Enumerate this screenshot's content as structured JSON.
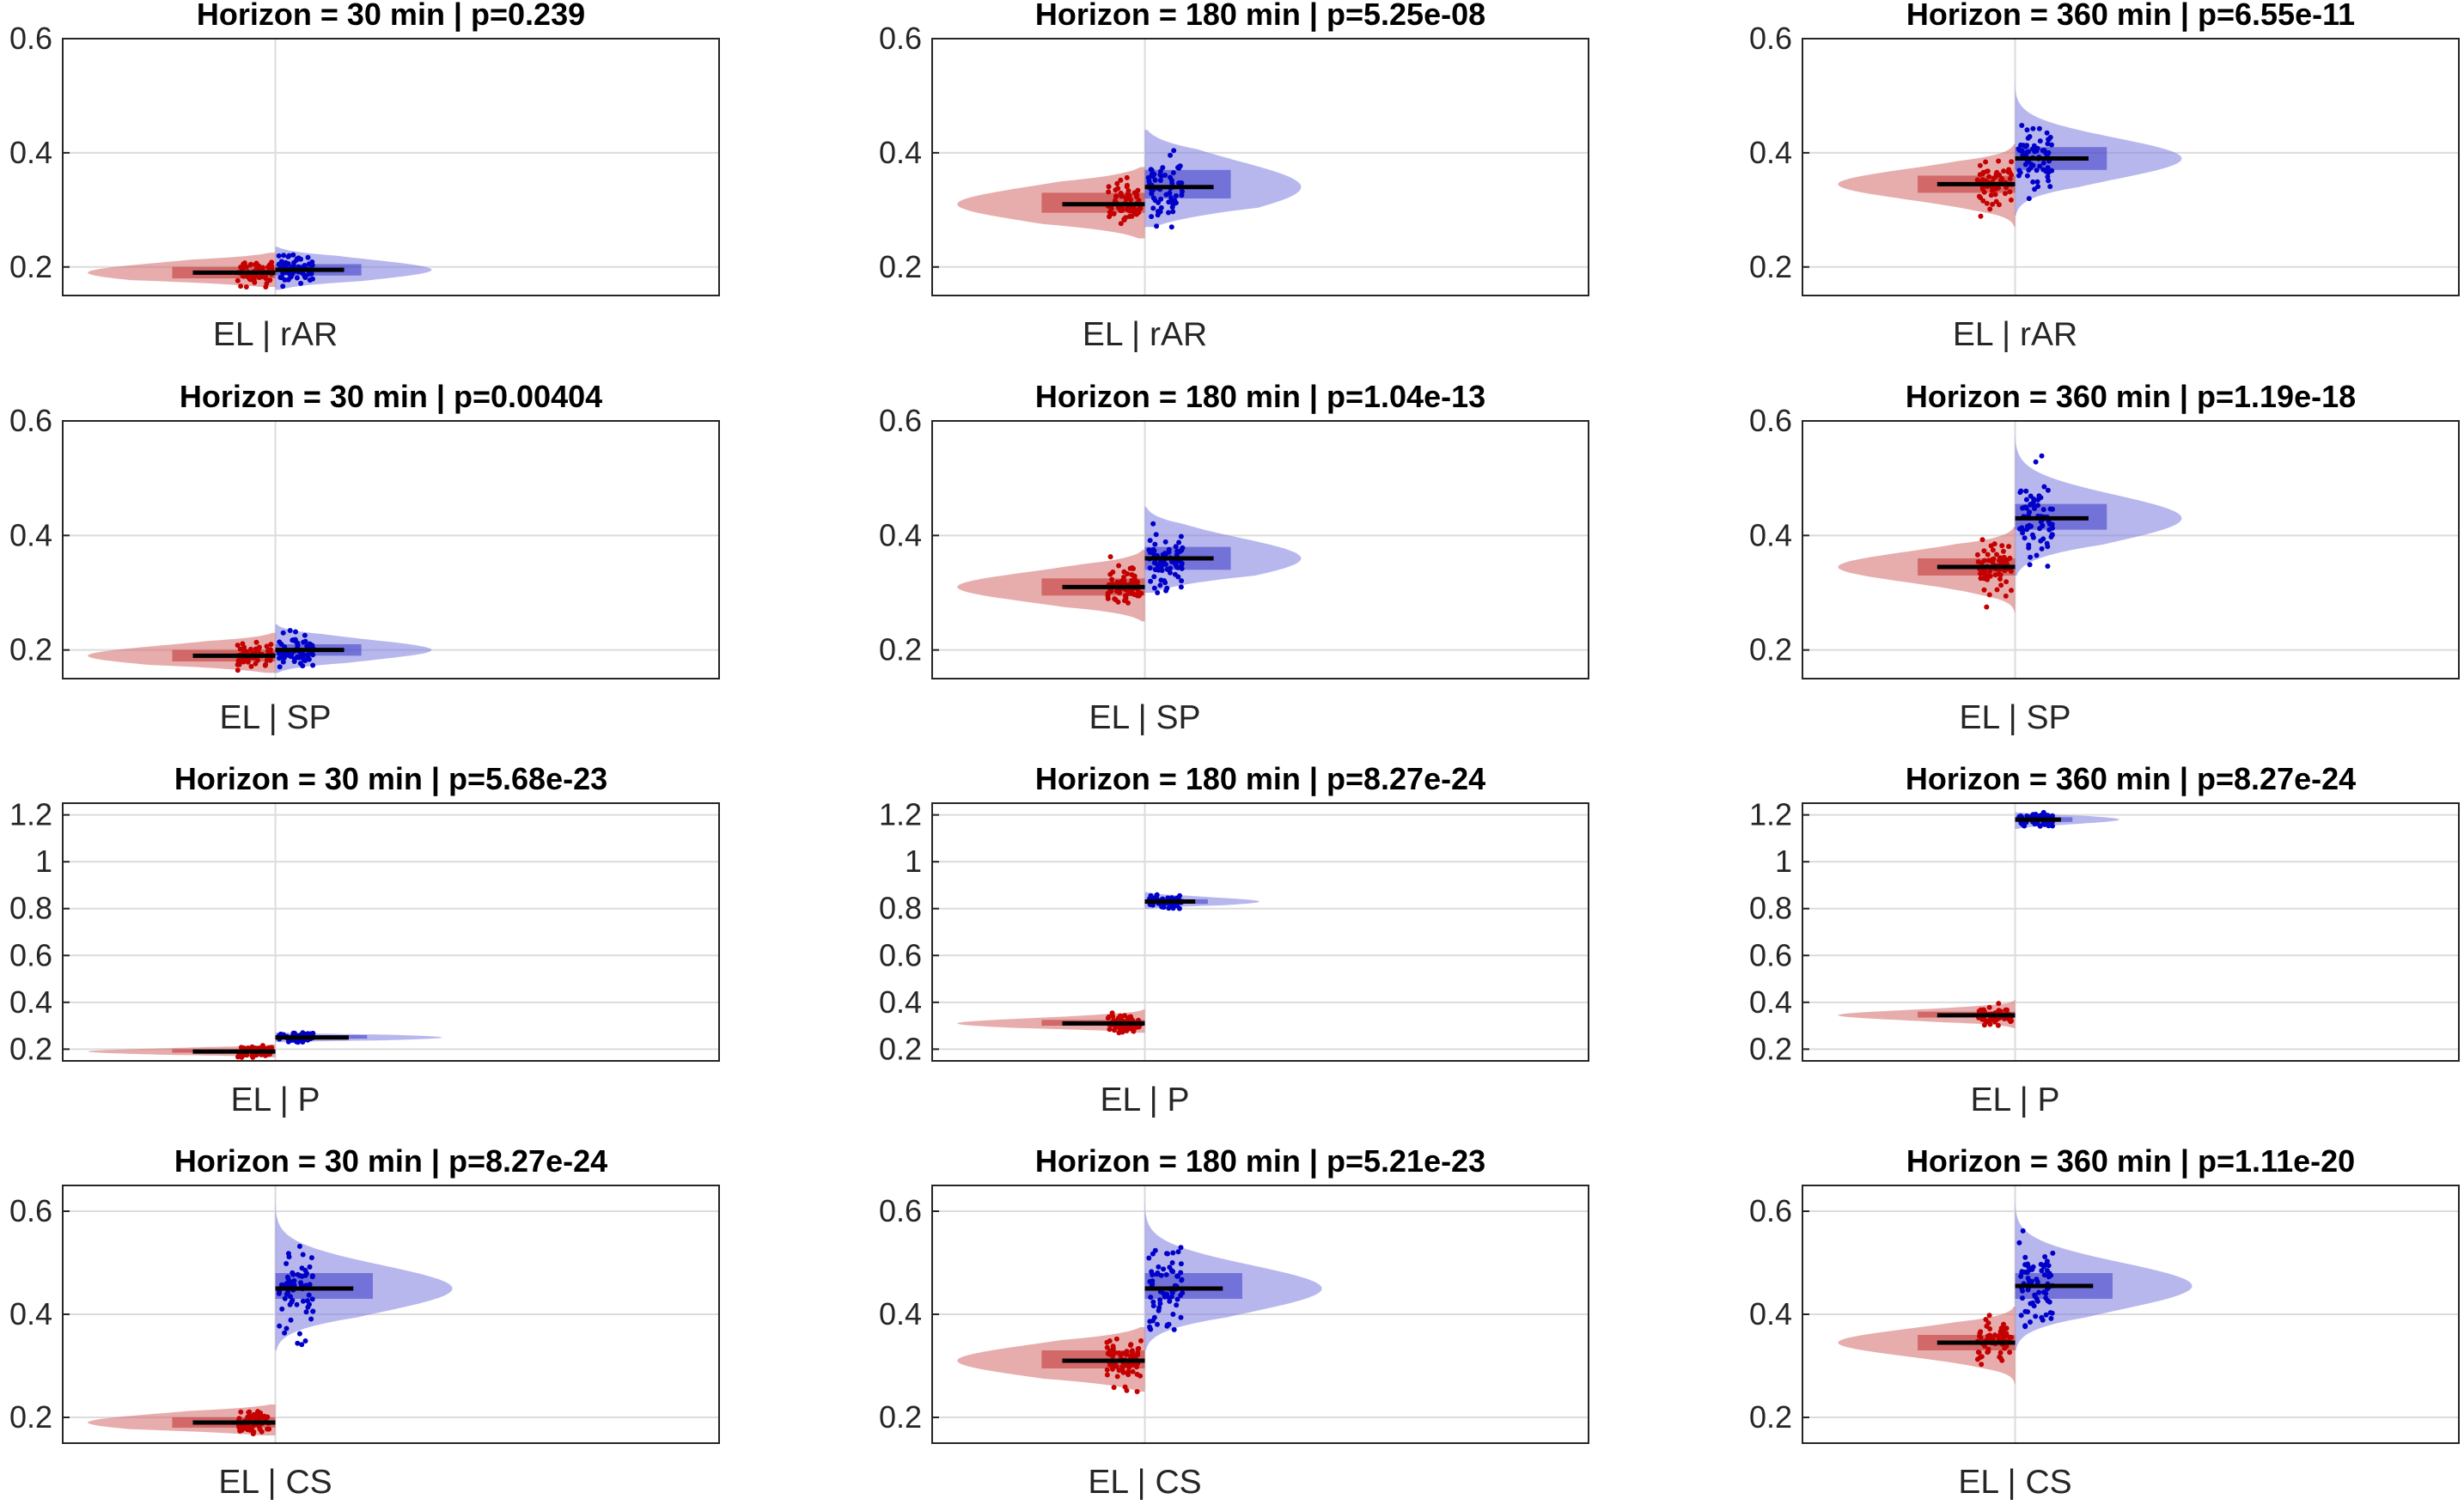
{
  "figure": {
    "rows": [
      "rAR",
      "SP",
      "P",
      "CS"
    ],
    "cols": [
      30,
      180,
      360
    ]
  },
  "colors": {
    "left_fill": "#d46a6a",
    "left_box": "#b81414",
    "left_dots": "#c40000",
    "right_fill": "#7b7be0",
    "right_box": "#1e1ebe",
    "right_dots": "#0000c8",
    "median": "#000000",
    "axis": "#262626",
    "grid": "#dcdcdc"
  },
  "chart_data": [
    {
      "type": "violin",
      "title": "Horizon = 30 min |  p=0.239",
      "xlabel": "EL | rAR",
      "ylim": [
        0.15,
        0.6
      ],
      "yticks": [
        0.2,
        0.4,
        0.6
      ],
      "ytick_labels": [
        "0.2",
        "0.4",
        "0.6"
      ],
      "series": [
        {
          "name": "EL",
          "median": 0.19,
          "q1": 0.18,
          "q3": 0.2,
          "range": [
            0.165,
            0.225
          ],
          "width": 0.9,
          "spread": 0.01
        },
        {
          "name": "rAR",
          "median": 0.195,
          "q1": 0.185,
          "q3": 0.205,
          "range": [
            0.16,
            0.235
          ],
          "width": 0.75,
          "spread": 0.012
        }
      ]
    },
    {
      "type": "violin",
      "title": "Horizon = 180 min |  p=5.25e-08",
      "xlabel": "EL | rAR",
      "ylim": [
        0.15,
        0.6
      ],
      "yticks": [
        0.2,
        0.4,
        0.6
      ],
      "ytick_labels": [
        "0.2",
        "0.4",
        "0.6"
      ],
      "series": [
        {
          "name": "EL",
          "median": 0.31,
          "q1": 0.295,
          "q3": 0.33,
          "range": [
            0.25,
            0.375
          ],
          "width": 0.9,
          "spread": 0.02
        },
        {
          "name": "rAR",
          "median": 0.34,
          "q1": 0.32,
          "q3": 0.37,
          "range": [
            0.27,
            0.44
          ],
          "width": 0.75,
          "spread": 0.03
        }
      ]
    },
    {
      "type": "violin",
      "title": "Horizon = 360 min |  p=6.55e-11",
      "xlabel": "EL | rAR",
      "ylim": [
        0.15,
        0.6
      ],
      "yticks": [
        0.2,
        0.4,
        0.6
      ],
      "ytick_labels": [
        "0.2",
        "0.4",
        "0.6"
      ],
      "series": [
        {
          "name": "EL",
          "median": 0.345,
          "q1": 0.33,
          "q3": 0.36,
          "range": [
            0.27,
            0.415
          ],
          "width": 0.85,
          "spread": 0.02
        },
        {
          "name": "rAR",
          "median": 0.39,
          "q1": 0.37,
          "q3": 0.41,
          "range": [
            0.29,
            0.54
          ],
          "width": 0.8,
          "spread": 0.03
        }
      ]
    },
    {
      "type": "violin",
      "title": "Horizon = 30 min |  p=0.00404",
      "xlabel": "EL | SP",
      "ylim": [
        0.15,
        0.6
      ],
      "yticks": [
        0.2,
        0.4,
        0.6
      ],
      "ytick_labels": [
        "0.2",
        "0.4",
        "0.6"
      ],
      "series": [
        {
          "name": "EL",
          "median": 0.19,
          "q1": 0.18,
          "q3": 0.2,
          "range": [
            0.16,
            0.23
          ],
          "width": 0.9,
          "spread": 0.01
        },
        {
          "name": "SP",
          "median": 0.2,
          "q1": 0.19,
          "q3": 0.21,
          "range": [
            0.16,
            0.245
          ],
          "width": 0.75,
          "spread": 0.013
        }
      ]
    },
    {
      "type": "violin",
      "title": "Horizon = 180 min |  p=1.04e-13",
      "xlabel": "EL | SP",
      "ylim": [
        0.15,
        0.6
      ],
      "yticks": [
        0.2,
        0.4,
        0.6
      ],
      "ytick_labels": [
        "0.2",
        "0.4",
        "0.6"
      ],
      "series": [
        {
          "name": "EL",
          "median": 0.31,
          "q1": 0.295,
          "q3": 0.325,
          "range": [
            0.25,
            0.375
          ],
          "width": 0.9,
          "spread": 0.02
        },
        {
          "name": "SP",
          "median": 0.36,
          "q1": 0.34,
          "q3": 0.38,
          "range": [
            0.3,
            0.45
          ],
          "width": 0.75,
          "spread": 0.025
        }
      ]
    },
    {
      "type": "violin",
      "title": "Horizon = 360 min |  p=1.19e-18",
      "xlabel": "EL | SP",
      "ylim": [
        0.15,
        0.6
      ],
      "yticks": [
        0.2,
        0.4,
        0.6
      ],
      "ytick_labels": [
        "0.2",
        "0.4",
        "0.6"
      ],
      "series": [
        {
          "name": "EL",
          "median": 0.345,
          "q1": 0.33,
          "q3": 0.36,
          "range": [
            0.265,
            0.415
          ],
          "width": 0.85,
          "spread": 0.02
        },
        {
          "name": "SP",
          "median": 0.43,
          "q1": 0.41,
          "q3": 0.455,
          "range": [
            0.33,
            0.6
          ],
          "width": 0.8,
          "spread": 0.035
        }
      ]
    },
    {
      "type": "violin",
      "title": "Horizon = 30 min |  p=5.68e-23",
      "xlabel": "EL | P",
      "ylim": [
        0.15,
        1.25
      ],
      "yticks": [
        0.2,
        0.4,
        0.6,
        0.8,
        1,
        1.2
      ],
      "ytick_labels": [
        "0.2",
        "0.4",
        "0.6",
        "0.8",
        "1",
        "1.2"
      ],
      "series": [
        {
          "name": "EL",
          "median": 0.19,
          "q1": 0.185,
          "q3": 0.2,
          "range": [
            0.165,
            0.22
          ],
          "width": 0.9,
          "spread": 0.012
        },
        {
          "name": "P",
          "median": 0.25,
          "q1": 0.245,
          "q3": 0.26,
          "range": [
            0.23,
            0.27
          ],
          "width": 0.8,
          "spread": 0.01
        }
      ]
    },
    {
      "type": "violin",
      "title": "Horizon = 180 min |  p=8.27e-24",
      "xlabel": "EL | P",
      "ylim": [
        0.15,
        1.25
      ],
      "yticks": [
        0.2,
        0.4,
        0.6,
        0.8,
        1,
        1.2
      ],
      "ytick_labels": [
        "0.2",
        "0.4",
        "0.6",
        "0.8",
        "1",
        "1.2"
      ],
      "series": [
        {
          "name": "EL",
          "median": 0.31,
          "q1": 0.3,
          "q3": 0.325,
          "range": [
            0.27,
            0.37
          ],
          "width": 0.9,
          "spread": 0.018
        },
        {
          "name": "P",
          "median": 0.83,
          "q1": 0.82,
          "q3": 0.84,
          "range": [
            0.8,
            0.87
          ],
          "width": 0.55,
          "spread": 0.013
        }
      ]
    },
    {
      "type": "violin",
      "title": "Horizon = 360 min |  p=8.27e-24",
      "xlabel": "EL | P",
      "ylim": [
        0.15,
        1.25
      ],
      "yticks": [
        0.2,
        0.4,
        0.6,
        0.8,
        1,
        1.2
      ],
      "ytick_labels": [
        "0.2",
        "0.4",
        "0.6",
        "0.8",
        "1",
        "1.2"
      ],
      "series": [
        {
          "name": "EL",
          "median": 0.345,
          "q1": 0.335,
          "q3": 0.36,
          "range": [
            0.29,
            0.41
          ],
          "width": 0.85,
          "spread": 0.018
        },
        {
          "name": "P",
          "median": 1.18,
          "q1": 1.17,
          "q3": 1.19,
          "range": [
            1.14,
            1.21
          ],
          "width": 0.5,
          "spread": 0.012
        }
      ]
    },
    {
      "type": "violin",
      "title": "Horizon = 30 min |  p=8.27e-24",
      "xlabel": "EL | CS",
      "ylim": [
        0.15,
        0.65
      ],
      "yticks": [
        0.2,
        0.4,
        0.6
      ],
      "ytick_labels": [
        "0.2",
        "0.4",
        "0.6"
      ],
      "series": [
        {
          "name": "EL",
          "median": 0.19,
          "q1": 0.18,
          "q3": 0.2,
          "range": [
            0.165,
            0.225
          ],
          "width": 0.9,
          "spread": 0.01
        },
        {
          "name": "CS",
          "median": 0.45,
          "q1": 0.43,
          "q3": 0.48,
          "range": [
            0.33,
            0.65
          ],
          "width": 0.85,
          "spread": 0.04
        }
      ]
    },
    {
      "type": "violin",
      "title": "Horizon = 180 min |  p=5.21e-23",
      "xlabel": "EL | CS",
      "ylim": [
        0.15,
        0.65
      ],
      "yticks": [
        0.2,
        0.4,
        0.6
      ],
      "ytick_labels": [
        "0.2",
        "0.4",
        "0.6"
      ],
      "series": [
        {
          "name": "EL",
          "median": 0.31,
          "q1": 0.295,
          "q3": 0.33,
          "range": [
            0.25,
            0.375
          ],
          "width": 0.9,
          "spread": 0.02
        },
        {
          "name": "CS",
          "median": 0.45,
          "q1": 0.43,
          "q3": 0.48,
          "range": [
            0.33,
            0.65
          ],
          "width": 0.85,
          "spread": 0.04
        }
      ]
    },
    {
      "type": "violin",
      "title": "Horizon = 360 min |  p=1.11e-20",
      "xlabel": "EL | CS",
      "ylim": [
        0.15,
        0.65
      ],
      "yticks": [
        0.2,
        0.4,
        0.6
      ],
      "ytick_labels": [
        "0.2",
        "0.4",
        "0.6"
      ],
      "series": [
        {
          "name": "EL",
          "median": 0.345,
          "q1": 0.33,
          "q3": 0.36,
          "range": [
            0.265,
            0.415
          ],
          "width": 0.85,
          "spread": 0.02
        },
        {
          "name": "CS",
          "median": 0.455,
          "q1": 0.43,
          "q3": 0.48,
          "range": [
            0.33,
            0.65
          ],
          "width": 0.85,
          "spread": 0.04
        }
      ]
    }
  ]
}
